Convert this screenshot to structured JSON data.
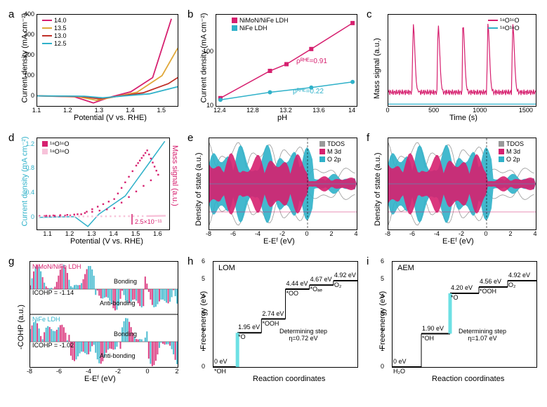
{
  "colors": {
    "magenta": "#d6206f",
    "cyan": "#2fb1c9",
    "orange": "#e0a83a",
    "red": "#c03028",
    "grey": "#999999",
    "lightcyan": "#5dd7e6",
    "step_highlight": "#6de0e4"
  },
  "fonts": {
    "axis_label_size": 11,
    "tick_size": 9,
    "panel_label_size": 15
  },
  "a": {
    "label": "a",
    "xlabel": "Potential (V vs. RHE)",
    "ylabel": "Current density (mA cm⁻²)",
    "xlim": [
      1.1,
      1.55
    ],
    "xticks": [
      1.1,
      1.2,
      1.3,
      1.4,
      1.5
    ],
    "ylim": [
      -50,
      400
    ],
    "yticks": [
      0,
      100,
      200,
      300,
      400
    ],
    "legend": [
      {
        "label": "14.0",
        "color": "#d6206f"
      },
      {
        "label": "13.5",
        "color": "#e0a83a"
      },
      {
        "label": "13.0",
        "color": "#c03028"
      },
      {
        "label": "12.5",
        "color": "#2fb1c9"
      }
    ],
    "series": {
      "14.0": [
        [
          1.1,
          0
        ],
        [
          1.22,
          -5
        ],
        [
          1.28,
          -35
        ],
        [
          1.33,
          -8
        ],
        [
          1.4,
          20
        ],
        [
          1.47,
          90
        ],
        [
          1.53,
          380
        ]
      ],
      "13.5": [
        [
          1.1,
          0
        ],
        [
          1.23,
          -4
        ],
        [
          1.29,
          -22
        ],
        [
          1.35,
          -4
        ],
        [
          1.42,
          18
        ],
        [
          1.5,
          100
        ],
        [
          1.55,
          235
        ]
      ],
      "13.0": [
        [
          1.1,
          0
        ],
        [
          1.24,
          -3
        ],
        [
          1.3,
          -15
        ],
        [
          1.36,
          -2
        ],
        [
          1.44,
          15
        ],
        [
          1.52,
          60
        ],
        [
          1.55,
          90
        ]
      ],
      "12.5": [
        [
          1.1,
          0
        ],
        [
          1.25,
          -2
        ],
        [
          1.31,
          -10
        ],
        [
          1.38,
          0
        ],
        [
          1.46,
          10
        ],
        [
          1.55,
          45
        ]
      ]
    }
  },
  "b": {
    "label": "b",
    "xlabel": "pH",
    "ylabel": "Current density (mA cm⁻²)",
    "xlim": [
      12.35,
      14.05
    ],
    "xticks": [
      12.4,
      12.8,
      13.2,
      13.6,
      14.0
    ],
    "ylim_log": [
      10,
      500
    ],
    "yticks": [
      10,
      100
    ],
    "legend": [
      {
        "label": "NiMoN/NiFe LDH",
        "marker": "square",
        "color": "#d6206f"
      },
      {
        "label": "NiFe LDH",
        "marker": "circle",
        "color": "#2fb1c9"
      }
    ],
    "anno": [
      {
        "text": "ρᴿᴴᴱ=0.91",
        "color": "#d6206f"
      },
      {
        "text": "ρᴿᴴᴱ=0.22",
        "color": "#2fb1c9"
      }
    ],
    "series": {
      "NiMoN": [
        [
          12.4,
          14
        ],
        [
          13.0,
          45
        ],
        [
          13.2,
          60
        ],
        [
          13.5,
          115
        ],
        [
          14.0,
          350
        ]
      ],
      "NiFe": [
        [
          12.4,
          13
        ],
        [
          13.0,
          18
        ],
        [
          13.5,
          22
        ],
        [
          14.0,
          28
        ]
      ]
    }
  },
  "c": {
    "label": "c",
    "xlabel": "Time (s)",
    "ylabel": "Mass signal (a.u.)",
    "xlim": [
      0,
      1600
    ],
    "xticks": [
      0,
      500,
      1000,
      1500
    ],
    "legend": [
      {
        "label": "¹⁸O¹⁶O",
        "color": "#d6206f"
      },
      {
        "label": "¹⁸O¹⁸O",
        "color": "#2fb1c9"
      }
    ],
    "peaks_x": [
      270,
      540,
      810,
      1080,
      1350
    ],
    "baseline_1816": 0.15,
    "peak_height": 0.9,
    "baseline_1818": 0.02,
    "ylim": [
      0,
      1
    ]
  },
  "d": {
    "label": "d",
    "xlabel": "Potential (V vs. RHE)",
    "ylabel_l": "Current density (mA cm⁻²)",
    "ylabel_l_color": "#2fb1c9",
    "ylabel_r": "Mass signal (a.u.)",
    "ylabel_r_color": "#d6206f",
    "xlim": [
      1.05,
      1.65
    ],
    "xticks": [
      1.1,
      1.2,
      1.3,
      1.4,
      1.5,
      1.6
    ],
    "ylim_l": [
      -0.2,
      1.3
    ],
    "yticks_l": [
      0.0,
      0.4,
      0.8,
      1.2
    ],
    "legend": [
      {
        "label": "¹⁸O¹⁶O",
        "marker": "square",
        "color": "#d6206f"
      },
      {
        "label": "¹⁸O¹⁸O",
        "marker": "square",
        "color": "#f7c2d9"
      }
    ],
    "scale_anno": "2.5×10⁻¹¹",
    "cv": [
      [
        1.06,
        0.0
      ],
      [
        1.22,
        0.01
      ],
      [
        1.28,
        -0.15
      ],
      [
        1.33,
        0.05
      ],
      [
        1.45,
        0.35
      ],
      [
        1.55,
        0.85
      ],
      [
        1.63,
        1.25
      ]
    ],
    "ms_1816": [
      [
        1.06,
        0.02
      ],
      [
        1.25,
        0.05
      ],
      [
        1.4,
        0.3
      ],
      [
        1.5,
        0.85
      ],
      [
        1.55,
        1.1
      ],
      [
        1.6,
        0.7
      ],
      [
        1.4,
        0.15
      ],
      [
        1.2,
        0.03
      ],
      [
        1.06,
        0.02
      ]
    ],
    "ms_1818": [
      [
        1.06,
        0.01
      ],
      [
        1.3,
        0.015
      ],
      [
        1.55,
        0.02
      ],
      [
        1.63,
        0.025
      ]
    ]
  },
  "e": {
    "label": "e",
    "xlabel": "E-Eᶠ (eV)",
    "ylabel": "Density of state (a.u.)",
    "xlim": [
      -8,
      4
    ],
    "xticks": [
      -8,
      -6,
      -4,
      -2,
      0,
      2,
      4
    ],
    "legend": [
      {
        "label": "TDOS",
        "color": "#999999"
      },
      {
        "label": "M 3d",
        "color": "#d6206f"
      },
      {
        "label": "O 2p",
        "color": "#2fb1c9"
      }
    ]
  },
  "f": {
    "label": "f",
    "xlabel": "E-Eᶠ (eV)",
    "ylabel": "Density of state (a.u.)",
    "xlim": [
      -8,
      4
    ],
    "xticks": [
      -8,
      -6,
      -4,
      -2,
      0,
      2,
      4
    ],
    "legend": [
      {
        "label": "TDOS",
        "color": "#999999"
      },
      {
        "label": "M 3d",
        "color": "#d6206f"
      },
      {
        "label": "O 2p",
        "color": "#2fb1c9"
      }
    ]
  },
  "g": {
    "label": "g",
    "xlabel": "E-Eᶠ (eV)",
    "ylabel": "-COHP (a.u.)",
    "xlim": [
      -8,
      2
    ],
    "xticks": [
      -8,
      -6,
      -4,
      -2,
      0,
      2
    ],
    "titles": [
      "NiMoN/NiFe LDH",
      "NiFe LDH"
    ],
    "anno": [
      "ICOHP = -1.14",
      "ICOHP = -1.02"
    ],
    "labels": [
      "Bonding",
      "Anti-bonding"
    ],
    "colors": [
      "#d6206f",
      "#2fb1c9"
    ]
  },
  "h": {
    "label": "h",
    "title": "LOM",
    "xlabel": "Reaction coordinates",
    "ylabel": "Free energy (eV)",
    "ylim": [
      0,
      6
    ],
    "yticks": [
      0,
      1,
      2,
      3,
      4,
      5,
      6
    ],
    "steps": [
      {
        "label": "*OH",
        "val": "0 eV",
        "y": 0.0
      },
      {
        "label": "*O",
        "val": "1.95 eV",
        "y": 1.95,
        "highlight": true
      },
      {
        "label": "*OOH",
        "val": "2.74 eV",
        "y": 2.74
      },
      {
        "label": "*OO",
        "val": "4.44 eV",
        "y": 4.44
      },
      {
        "label": "*Oₐₑ",
        "val": "4.67 eV",
        "y": 4.67
      },
      {
        "label": "O₂",
        "val": "4.92 eV",
        "y": 4.92
      }
    ],
    "anno": "Determining step\nη=0.72 eV"
  },
  "i": {
    "label": "i",
    "title": "AEM",
    "xlabel": "Reaction coordinates",
    "ylabel": "Free energy (eV)",
    "ylim": [
      0,
      6
    ],
    "yticks": [
      0,
      1,
      2,
      3,
      4,
      5,
      6
    ],
    "steps": [
      {
        "label": "H₂O",
        "val": "0 eV",
        "y": 0.0
      },
      {
        "label": "*OH",
        "val": "1.90 eV",
        "y": 1.9
      },
      {
        "label": "*O",
        "val": "4.20 eV",
        "y": 4.2,
        "highlight": true
      },
      {
        "label": "*OOH",
        "val": "4.56 eV",
        "y": 4.56
      },
      {
        "label": "O₂",
        "val": "4.92 eV",
        "y": 4.92
      }
    ],
    "anno": "Determining step\nη=1.07 eV"
  }
}
